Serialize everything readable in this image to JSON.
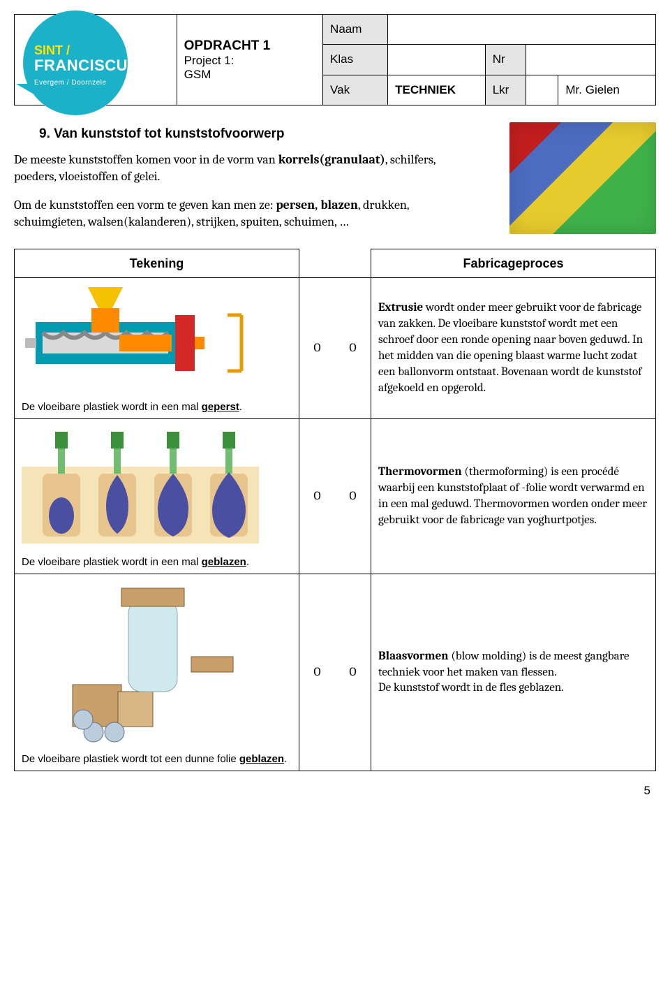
{
  "header": {
    "assignment_title": "OPDRACHT 1",
    "project_line1": "Project 1:",
    "project_line2": "GSM",
    "fields": {
      "naam_label": "Naam",
      "klas_label": "Klas",
      "nr_label": "Nr",
      "vak_label": "Vak",
      "vak_value": "TECHNIEK",
      "lkr_label": "Lkr",
      "lkr_value": "Mr. Gielen"
    },
    "logo": {
      "line1": "SINT /",
      "line2": "FRANCISCUS",
      "sub": "Evergem / Doornzele"
    }
  },
  "section": {
    "number_title": "9. Van kunststof tot kunststofvoorwerp",
    "intro1_pre": "De meeste kunststoffen komen voor in de vorm van ",
    "intro1_bold": "korrels(granulaat)",
    "intro1_post": ", schilfers, poeders, vloeistoffen of gelei.",
    "intro2_pre": "Om de kunststoffen een vorm te geven kan men ze: ",
    "intro2_bold": "persen, blazen",
    "intro2_post": ", drukken, schuimgieten, walsen(kalanderen), strijken, spuiten, schuimen, …"
  },
  "table": {
    "head_left": "Tekening",
    "head_right": "Fabricageproces",
    "o": "O",
    "rows": [
      {
        "caption_pre": "De vloeibare plastiek wordt in een mal ",
        "caption_u": "geperst",
        "caption_post": ".",
        "desc_html": "<b>Extrusie</b> wordt onder meer gebruikt voor de fabricage van zakken. De vloeibare kunststof wordt met een schroef door een ronde opening naar boven geduwd. In het midden van die opening blaast warme lucht zodat een ballonvorm ontstaat. Bovenaan wordt de kunststof afgekoeld en opgerold."
      },
      {
        "caption_pre": "De vloeibare plastiek wordt in een mal ",
        "caption_u": "geblazen",
        "caption_post": ".",
        "desc_html": "<b>Thermovormen</b> (thermoforming) is een procédé waarbij een kunststofplaat of -folie wordt verwarmd en in een mal geduwd. Thermovormen worden onder meer gebruikt voor de fabricage van yoghurtpotjes."
      },
      {
        "caption_pre": "De vloeibare plastiek wordt tot een dunne folie ",
        "caption_u": "geblazen",
        "caption_post": ".",
        "desc_html": "<b>Blaasvormen</b> (blow molding) is de meest gangbare techniek voor het maken van flessen.<br>De kunststof wordt in de fles geblazen."
      }
    ]
  },
  "page_number": "5",
  "style": {
    "colors": {
      "logo_bg": "#1bb2c9",
      "logo_accent": "#ffe600",
      "cell_gray": "#e5e5e5",
      "extruder_body": "#009bb0",
      "extruder_screw": "#d9d9d9",
      "extruder_plastic": "#ff8a00",
      "extruder_funnel": "#f4c200",
      "extruder_die": "#d42727",
      "extruder_bracket": "#e69b00",
      "blow_mold": "#e9c58e",
      "blow_bottle": "#4a4fa1",
      "blow_nozzle": "#3a8f3a",
      "film_machine": "#caa06a",
      "film_tube": "#cfe9ef"
    },
    "fonts": {
      "serif": "Cambria, Georgia, serif",
      "sans": "Arial, sans-serif"
    }
  }
}
